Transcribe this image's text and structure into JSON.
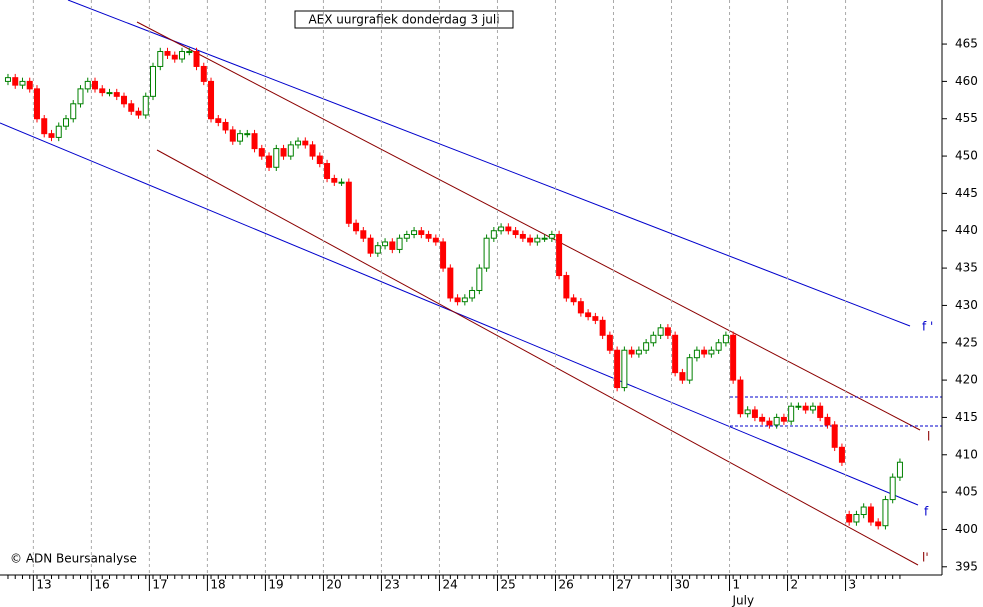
{
  "chart_data": {
    "type": "candlestick",
    "title": "AEX uurgrafiek donderdag 3 juli",
    "credit": "© ADN Beursanalyse",
    "month_label": "July",
    "line_labels": [
      "f '",
      "l",
      "f",
      "l'"
    ],
    "ylim": [
      393.9,
      470.9
    ],
    "yticks": [
      395,
      400,
      405,
      410,
      415,
      420,
      425,
      430,
      435,
      440,
      445,
      450,
      455,
      460,
      465
    ],
    "xlim": [
      -1.1,
      128.8
    ],
    "xticks": [
      {
        "value": 3.5,
        "label": "13"
      },
      {
        "value": 11.5,
        "label": "16"
      },
      {
        "value": 19.5,
        "label": "17"
      },
      {
        "value": 27.5,
        "label": "18"
      },
      {
        "value": 35.5,
        "label": "19"
      },
      {
        "value": 43.5,
        "label": "20"
      },
      {
        "value": 51.5,
        "label": "23"
      },
      {
        "value": 59.5,
        "label": "24"
      },
      {
        "value": 67.5,
        "label": "25"
      },
      {
        "value": 75.5,
        "label": "26"
      },
      {
        "value": 83.5,
        "label": "27"
      },
      {
        "value": 91.5,
        "label": "30"
      },
      {
        "value": 99.5,
        "label": "1"
      },
      {
        "value": 107.5,
        "label": "2"
      },
      {
        "value": 115.5,
        "label": "3"
      }
    ],
    "up_color": "#008000",
    "down_color": "#ff0000",
    "grid": true,
    "open": [
      460,
      460.5,
      459.5,
      460,
      459,
      455,
      453,
      452.5,
      454,
      455,
      457,
      459,
      460,
      459,
      458.5,
      458.5,
      458,
      457,
      456,
      455.5,
      458,
      462,
      464,
      463.5,
      463,
      464,
      464,
      462,
      460,
      455,
      454.5,
      453.5,
      452,
      453,
      453,
      451,
      450,
      448.5,
      451,
      450,
      451.5,
      452,
      451.5,
      450,
      449,
      447,
      446.5,
      446.5,
      441,
      440,
      439,
      437,
      438,
      438.5,
      437.5,
      439,
      439.5,
      440,
      439.5,
      439,
      438.5,
      435,
      431,
      430.5,
      431,
      432,
      435,
      439,
      440,
      440.5,
      440,
      439.5,
      439,
      438.5,
      439,
      439,
      439.5,
      434,
      431,
      430.5,
      429,
      428.5,
      428,
      426,
      424,
      419,
      424,
      423.5,
      424,
      425,
      426,
      427,
      426,
      421,
      420,
      423,
      424,
      423.5,
      424,
      425,
      426,
      420,
      415.5,
      416,
      415,
      414.5,
      414,
      415,
      414.5,
      416.5,
      416.5,
      416,
      416.5,
      415,
      414,
      411,
      402,
      401,
      402,
      403,
      401,
      400.5,
      404,
      407
    ],
    "high": [
      461,
      461,
      460.5,
      460.5,
      459.5,
      455.5,
      453.5,
      454.5,
      455.5,
      457.5,
      459.5,
      460.5,
      460.5,
      459.5,
      459,
      459,
      458.5,
      457.5,
      456.5,
      458.5,
      462.5,
      464.5,
      464.5,
      464,
      464.5,
      464.5,
      464.5,
      462.5,
      460.5,
      455.5,
      455,
      454,
      453.5,
      453.5,
      453.5,
      451.5,
      450.5,
      451.5,
      451.5,
      452,
      452.5,
      452.5,
      452,
      450.5,
      449.5,
      447.5,
      447,
      447,
      441.5,
      440.5,
      439.5,
      438.5,
      439,
      439,
      439.5,
      440,
      440.5,
      440.5,
      440,
      439.5,
      439,
      435.5,
      431.5,
      431.5,
      432.5,
      435.5,
      439.5,
      440.5,
      441,
      441,
      440.5,
      440,
      439.5,
      439.5,
      439.5,
      440,
      440,
      434.5,
      431.5,
      431,
      429.5,
      429,
      428.5,
      426.5,
      424.5,
      424.5,
      424.5,
      424.5,
      425.5,
      426.5,
      427.5,
      427.5,
      426.5,
      421.5,
      423.5,
      424.5,
      424.5,
      424.5,
      425.5,
      426.5,
      426.5,
      420.5,
      416.5,
      416.5,
      415.5,
      415,
      415.5,
      415.5,
      417,
      417,
      417,
      417,
      417,
      415.5,
      414.5,
      411.5,
      402.5,
      402.5,
      403.5,
      403.5,
      401.5,
      404.5,
      407.5,
      409.5
    ],
    "low": [
      459.5,
      459,
      459,
      458.5,
      454.5,
      452.5,
      452,
      452,
      453.5,
      454.5,
      456.5,
      458.5,
      458.5,
      458,
      458,
      457.5,
      456.5,
      455.5,
      455,
      455,
      457.5,
      461.5,
      463,
      462.5,
      462.5,
      463.5,
      461.5,
      459.5,
      454.5,
      454,
      453,
      451.5,
      451.5,
      452.5,
      450.5,
      449.5,
      448,
      448,
      449.5,
      449.5,
      451,
      451,
      449.5,
      448.5,
      446.5,
      446,
      446,
      440.5,
      439.5,
      438.5,
      436.5,
      436.5,
      437.5,
      437,
      437,
      438.5,
      439,
      439,
      438.5,
      438,
      434.5,
      430.5,
      430,
      430,
      430.5,
      431.5,
      434.5,
      438.5,
      439.5,
      439.5,
      439,
      438.5,
      438,
      438,
      438.5,
      438.5,
      433.5,
      430.5,
      430,
      428.5,
      428,
      427.5,
      425.5,
      423.5,
      418.5,
      418.5,
      423,
      423,
      423.5,
      424.5,
      425.5,
      425.5,
      420.5,
      419.5,
      419.5,
      422.5,
      423,
      423,
      423.5,
      424.5,
      419.5,
      415,
      415,
      414.5,
      414,
      413.5,
      413.5,
      414,
      414,
      416,
      415.5,
      415.5,
      414.5,
      413.5,
      410.5,
      408.5,
      400.5,
      400.5,
      401.5,
      400.5,
      400,
      400,
      403.5,
      406.5
    ],
    "close": [
      460.5,
      459.5,
      460,
      459,
      455,
      453,
      452.5,
      454,
      455,
      457,
      459,
      460,
      459,
      458.5,
      458.5,
      458,
      457,
      456,
      455.5,
      458,
      462,
      464,
      463.5,
      463,
      464,
      464,
      462,
      460,
      455,
      454.5,
      453.5,
      452,
      453,
      453,
      451,
      450,
      448.5,
      451,
      450,
      451.5,
      452,
      451.5,
      450,
      449,
      447,
      446.5,
      446.5,
      441,
      440,
      439,
      437,
      438,
      438.5,
      437.5,
      439,
      439.5,
      440,
      439.5,
      439,
      438.5,
      435,
      431,
      430.5,
      431,
      432,
      435,
      439,
      440,
      440.5,
      440,
      439.5,
      439,
      438.5,
      439,
      439,
      439.5,
      434,
      431,
      430.5,
      429,
      428.5,
      428,
      426,
      424,
      419,
      424,
      423.5,
      424,
      425,
      426,
      427,
      426,
      421,
      420,
      423,
      424,
      423.5,
      424,
      425,
      426,
      420,
      415.5,
      416,
      415,
      414.5,
      414,
      415,
      414.5,
      416.5,
      416.5,
      416,
      416.5,
      415,
      414,
      411,
      409,
      401,
      402,
      403,
      401,
      400.5,
      404,
      407,
      409
    ]
  }
}
